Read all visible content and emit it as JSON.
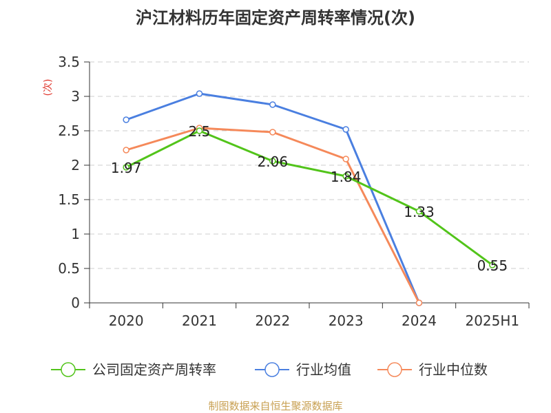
{
  "chart_data": {
    "type": "line",
    "title": "沪江材料历年固定资产周转率情况(次)",
    "ylabel": "(次)",
    "xlabel": "",
    "categories": [
      "2020",
      "2021",
      "2022",
      "2023",
      "2024",
      "2025H1"
    ],
    "ylim": [
      0,
      3.5
    ],
    "yticks": [
      "0",
      "0.5",
      "1",
      "1.5",
      "2",
      "2.5",
      "3",
      "3.5"
    ],
    "grid": true,
    "legend_position": "bottom",
    "series": [
      {
        "name": "公司固定资产周转率",
        "color": "#52c41a",
        "values": [
          1.97,
          2.5,
          2.06,
          1.84,
          1.33,
          0.55
        ],
        "labels": [
          "1.97",
          "2.5",
          "2.06",
          "1.84",
          "1.33",
          "0.55"
        ]
      },
      {
        "name": "行业均值",
        "color": "#4a7fe0",
        "values": [
          2.66,
          3.04,
          2.88,
          2.52,
          0,
          null
        ]
      },
      {
        "name": "行业中位数",
        "color": "#f5895a",
        "values": [
          2.22,
          2.54,
          2.48,
          2.09,
          0,
          null
        ]
      }
    ]
  },
  "footer": {
    "source": "制图数据来自恒生聚源数据库"
  }
}
